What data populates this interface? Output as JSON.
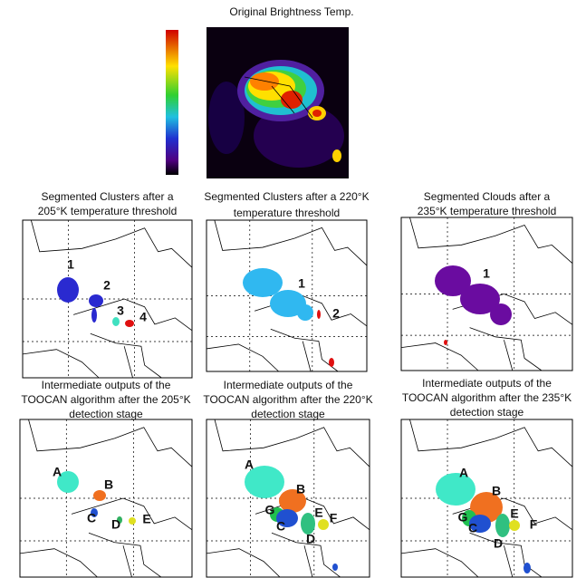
{
  "top": {
    "title": "Original Brightness Temp."
  },
  "segmented": [
    {
      "title": [
        "Segmented Clusters after a",
        "205°K temperature threshold"
      ],
      "labels": [
        "1",
        "2",
        "3",
        "4"
      ]
    },
    {
      "title": [
        "Segmented Clusters after a 220°K",
        "temperature threshold"
      ],
      "labels": [
        "1",
        "2"
      ]
    },
    {
      "title": [
        "Segmented Clouds after a",
        "235°K temperature threshold"
      ],
      "labels": [
        "1"
      ]
    }
  ],
  "intermediate": [
    {
      "title": [
        "Intermediate outputs of the",
        "TOOCAN algorithm after the 205°K",
        "detection stage"
      ],
      "labels": [
        "A",
        "B",
        "C",
        "D",
        "E"
      ]
    },
    {
      "title": [
        "Intermediate outputs of the",
        "TOOCAN algorithm after the 220°K",
        "detection stage"
      ],
      "labels": [
        "A",
        "B",
        "G",
        "C",
        "E",
        "F",
        "D"
      ]
    },
    {
      "title": [
        "Intermediate outputs of the",
        "TOOCAN algorithm after the 235°K",
        "detection stage"
      ],
      "labels": [
        "A",
        "B",
        "G",
        "C",
        "E",
        "F",
        "D"
      ]
    }
  ]
}
